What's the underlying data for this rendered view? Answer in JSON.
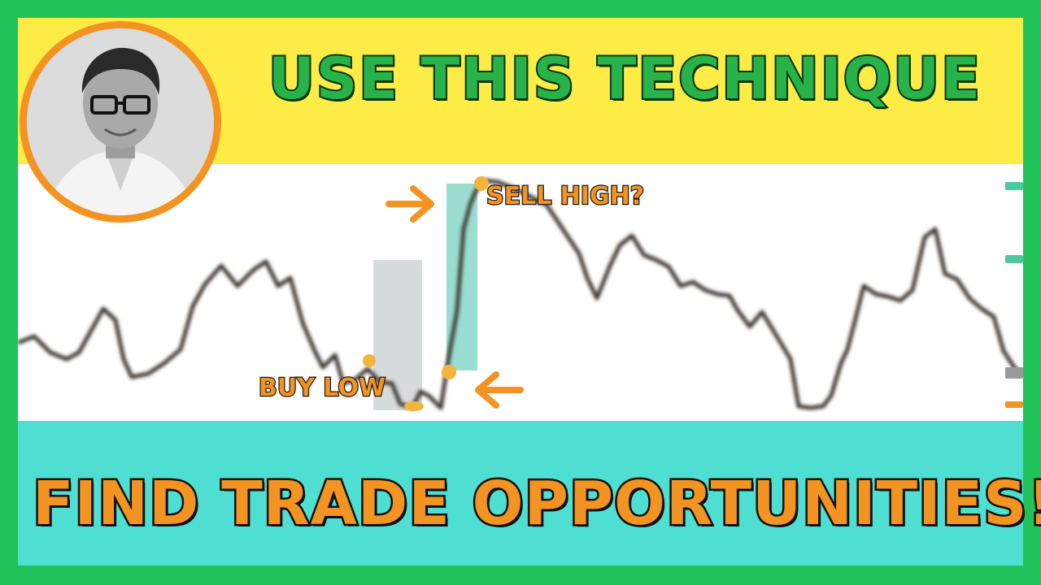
{
  "thumbnail": {
    "headline": "USE THIS TECHNIQUE",
    "call_to_action": "FIND TRADE OPPORTUNITIES!!",
    "annotations": {
      "sell_label": "SELL HIGH?",
      "buy_label": "BUY LOW"
    },
    "colors": {
      "frame": "#21c25a",
      "top_band": "#fdec45",
      "bottom_band": "#4fdfd2",
      "headline_text": "#27b34a",
      "accent_orange": "#f39321",
      "candle_dark": "#3f3a36",
      "highlight_teal": "#7fd6c4",
      "highlight_grey": "#c8cccc"
    },
    "icons": [
      "arrow-right-icon",
      "arrow-left-icon",
      "presenter-avatar"
    ]
  }
}
